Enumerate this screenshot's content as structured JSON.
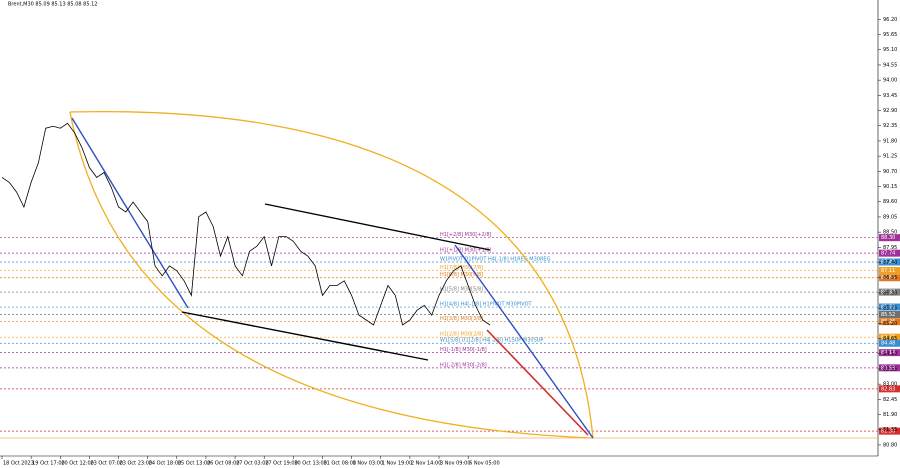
{
  "chart_data": {
    "type": "line",
    "title": "Brent,M30 85.09 85.13 85.08 85.12",
    "color": "#000000",
    "values": [
      90.48,
      90.3,
      89.95,
      89.41,
      90.3,
      91.01,
      92.26,
      92.33,
      92.26,
      92.44,
      92.08,
      91.55,
      90.84,
      90.48,
      90.66,
      90.12,
      89.41,
      89.23,
      89.59,
      89.23,
      88.88,
      87.28,
      86.92,
      87.28,
      87.1,
      86.74,
      86.21,
      89.06,
      89.23,
      88.7,
      87.63,
      88.34,
      87.28,
      86.92,
      87.81,
      87.99,
      88.34,
      87.28,
      88.34,
      88.34,
      88.17,
      87.81,
      87.63,
      87.28,
      86.21,
      86.57,
      86.57,
      86.74,
      86.21,
      85.5,
      85.32,
      85.14,
      85.85,
      86.57,
      86.21,
      85.14,
      85.32,
      85.68,
      85.85,
      85.5,
      86.21,
      86.74,
      87.1,
      87.28,
      86.57,
      85.85,
      85.32,
      85.14
    ],
    "x_labels": [
      "18 Oct 2023",
      "19 Oct 17:00",
      "20 Oct 12:00",
      "23 Oct 07:00",
      "23 Oct 23:00",
      "24 Oct 18:00",
      "25 Oct 13:00",
      "26 Oct 08:00",
      "27 Oct 03:00",
      "27 Oct 19:00",
      "30 Oct 13:00",
      "31 Oct 08:00",
      "1 Nov 03:00",
      "1 Nov 19:00",
      "2 Nov 14:00",
      "3 Nov 09:00",
      "6 Nov 05:00"
    ],
    "ylim": [
      80.4,
      96.9
    ],
    "yticks": [
      {
        "value": 80.8,
        "label": "80.80"
      },
      81.35,
      {
        "value": 81.9,
        "label": "81.90"
      },
      82.45,
      {
        "value": 83.0,
        "label": "83.00"
      },
      83.55,
      {
        "value": 84.1,
        "label": "84.10"
      },
      84.65,
      {
        "value": 85.2,
        "label": "85.20"
      },
      85.75,
      {
        "value": 86.3,
        "label": "86.30"
      },
      86.85,
      {
        "value": 87.4,
        "label": "87.40"
      },
      87.95,
      {
        "value": 88.5,
        "label": "88.50"
      },
      89.05,
      {
        "value": 89.6,
        "label": "89.60"
      },
      90.15,
      {
        "value": 90.7,
        "label": "90.70"
      },
      91.25,
      {
        "value": 91.8,
        "label": "91.80"
      },
      92.35,
      {
        "value": 92.9,
        "label": "92.90"
      },
      93.45,
      {
        "value": 94.0,
        "label": "94.00"
      },
      94.55,
      {
        "value": 95.1,
        "label": "95.10"
      },
      95.65,
      {
        "value": 96.2,
        "label": "96.20"
      }
    ],
    "levels": [
      {
        "value": 88.3,
        "label": "88.30",
        "color": "#a0309a",
        "tag": "H1[+2/8] M30[+2/8]"
      },
      {
        "value": 87.74,
        "label": "87.74",
        "color": "#a0309a",
        "tag": "H1[+1/8] M30[+1/8]"
      },
      {
        "value": 87.42,
        "label": "87.42",
        "color": "#3a8fd0",
        "tag": "W1PIVOT D1PIVOT H4[-1/8] H1REG M30REG"
      },
      {
        "value": 87.11,
        "label": "87.11",
        "color": "#f0a020",
        "tag": "H1[7/8] M30[7/8]"
      },
      {
        "value": 86.85,
        "label": "86.85",
        "color": "#e07a20",
        "tag": "H1[6/8] M30[6/8]"
      },
      {
        "value": 86.33,
        "label": "86.33",
        "color": "#808080",
        "tag": "H1[5/8] M30[5/8]"
      },
      {
        "value": 85.79,
        "label": "85.79",
        "color": "#3a8fd0",
        "tag": "H1[4/8] H4[-1/8] H1PIVOT M30PIVOT"
      },
      {
        "value": 85.52,
        "label": "85.52",
        "color": "#707070"
      },
      {
        "value": 85.26,
        "label": "85.26",
        "color": "#e07a20",
        "tag": "H1[3/8] M30[3/8]"
      },
      {
        "value": 84.7,
        "label": "84.70",
        "color": "#f0a020",
        "tag": "H1[2/8] M30[2/8]"
      },
      {
        "value": 84.48,
        "label": "84.48",
        "color": "#3a8fd0",
        "tag": "W1[5/8] D1[2/8] H4[-2/8] H1SUP M30SUP"
      },
      {
        "value": 84.14,
        "label": "84.14",
        "color": "#a0309a",
        "tag": "H1[-1/8] M30[-1/8]"
      },
      {
        "value": 83.59,
        "label": "83.59",
        "color": "#a0309a",
        "tag": "H1[-2/8] M30[-2/8]"
      },
      {
        "value": 82.83,
        "label": "82.83",
        "color": "#d03030"
      },
      {
        "value": 81.3,
        "label": "81.30",
        "color": "#d03030"
      }
    ]
  }
}
